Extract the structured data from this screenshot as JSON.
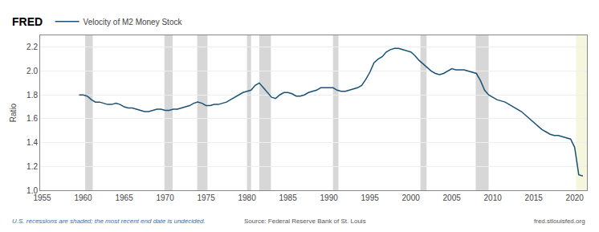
{
  "chart_data": {
    "type": "line",
    "ylabel": "Ratio",
    "x": [
      1959.5,
      1960.0,
      1960.5,
      1961.0,
      1961.5,
      1962.0,
      1962.5,
      1963.0,
      1963.5,
      1964.0,
      1964.5,
      1965.0,
      1965.5,
      1966.0,
      1966.5,
      1967.0,
      1967.5,
      1968.0,
      1968.5,
      1969.0,
      1969.5,
      1970.0,
      1970.5,
      1971.0,
      1971.5,
      1972.0,
      1972.5,
      1973.0,
      1973.5,
      1974.0,
      1974.5,
      1975.0,
      1975.5,
      1976.0,
      1976.5,
      1977.0,
      1977.5,
      1978.0,
      1978.5,
      1979.0,
      1979.5,
      1980.0,
      1980.5,
      1981.0,
      1981.5,
      1982.0,
      1982.5,
      1983.0,
      1983.5,
      1984.0,
      1984.5,
      1985.0,
      1985.5,
      1986.0,
      1986.5,
      1987.0,
      1987.5,
      1988.0,
      1988.5,
      1989.0,
      1989.5,
      1990.0,
      1990.5,
      1991.0,
      1991.5,
      1992.0,
      1992.5,
      1993.0,
      1993.5,
      1994.0,
      1994.5,
      1995.0,
      1995.5,
      1996.0,
      1996.5,
      1997.0,
      1997.5,
      1998.0,
      1998.5,
      1999.0,
      1999.5,
      2000.0,
      2000.5,
      2001.0,
      2001.5,
      2002.0,
      2002.5,
      2003.0,
      2003.5,
      2004.0,
      2004.5,
      2005.0,
      2005.5,
      2006.0,
      2006.5,
      2007.0,
      2007.5,
      2008.0,
      2008.5,
      2009.0,
      2009.5,
      2010.0,
      2010.5,
      2011.0,
      2011.5,
      2012.0,
      2012.5,
      2013.0,
      2013.5,
      2014.0,
      2014.5,
      2015.0,
      2015.5,
      2016.0,
      2016.5,
      2017.0,
      2017.5,
      2018.0,
      2018.5,
      2019.0,
      2019.5,
      2020.0,
      2020.5,
      2021.0
    ],
    "series": [
      {
        "name": "Velocity of M2 Money Stock",
        "color": "#1a5276",
        "values": [
          1.8,
          1.8,
          1.79,
          1.76,
          1.74,
          1.74,
          1.73,
          1.72,
          1.72,
          1.73,
          1.72,
          1.7,
          1.69,
          1.69,
          1.68,
          1.67,
          1.66,
          1.66,
          1.67,
          1.68,
          1.68,
          1.67,
          1.67,
          1.68,
          1.68,
          1.69,
          1.7,
          1.71,
          1.73,
          1.74,
          1.73,
          1.71,
          1.71,
          1.72,
          1.72,
          1.73,
          1.74,
          1.76,
          1.78,
          1.8,
          1.82,
          1.83,
          1.84,
          1.88,
          1.9,
          1.86,
          1.82,
          1.78,
          1.77,
          1.8,
          1.82,
          1.82,
          1.81,
          1.79,
          1.79,
          1.8,
          1.82,
          1.83,
          1.84,
          1.86,
          1.86,
          1.86,
          1.86,
          1.84,
          1.83,
          1.83,
          1.84,
          1.85,
          1.86,
          1.88,
          1.93,
          1.99,
          2.07,
          2.1,
          2.12,
          2.16,
          2.18,
          2.19,
          2.19,
          2.18,
          2.17,
          2.16,
          2.13,
          2.09,
          2.06,
          2.03,
          2.0,
          1.98,
          1.97,
          1.98,
          2.0,
          2.02,
          2.01,
          2.01,
          2.01,
          2.0,
          1.99,
          1.98,
          1.92,
          1.84,
          1.8,
          1.78,
          1.76,
          1.75,
          1.74,
          1.72,
          1.7,
          1.68,
          1.66,
          1.63,
          1.6,
          1.57,
          1.54,
          1.51,
          1.49,
          1.47,
          1.46,
          1.46,
          1.45,
          1.44,
          1.43,
          1.36,
          1.13,
          1.12
        ]
      }
    ],
    "xlim": [
      1954.75,
      2021.5
    ],
    "xticks": [
      1955,
      1960,
      1965,
      1970,
      1975,
      1980,
      1985,
      1990,
      1995,
      2000,
      2005,
      2010,
      2015,
      2020
    ],
    "ylim": [
      1.0,
      2.3
    ],
    "yticks": [
      {
        "value": 1.0,
        "label": "1.0"
      },
      1.2,
      1.4,
      1.6,
      1.8,
      {
        "value": 2.0,
        "label": "2.0"
      },
      2.2
    ],
    "grid": "y",
    "legend": "top left",
    "recessions": {
      "color": "#d0d0d0",
      "spans": [
        [
          1960.25,
          1961.17
        ],
        [
          1969.92,
          1970.92
        ],
        [
          1973.92,
          1975.17
        ],
        [
          1980.0,
          1980.5
        ],
        [
          1981.5,
          1982.92
        ],
        [
          1990.5,
          1991.17
        ],
        [
          2001.17,
          2001.92
        ],
        [
          2007.92,
          2009.5
        ]
      ]
    },
    "last_recession": {
      "color": "#f5f5dc",
      "span": [
        2020.17,
        2021.5
      ]
    },
    "annotations": [
      "FRED",
      "U.S. recessions are shaded; the most recent end date is undecided.",
      "Source: Federal Reserve Bank of St. Louis",
      "fred.stlouisfed.org"
    ]
  }
}
